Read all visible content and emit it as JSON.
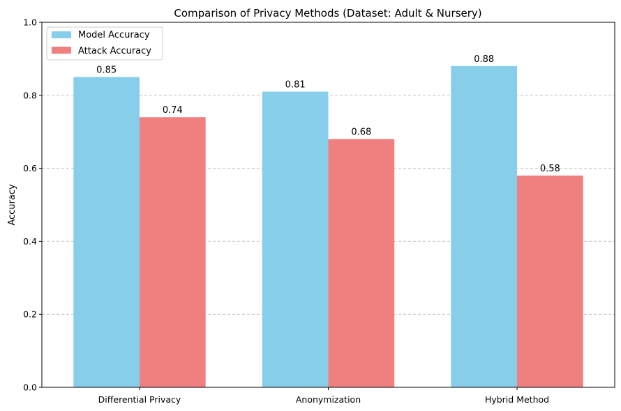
{
  "chart_data": {
    "type": "bar",
    "title": "Comparison of Privacy Methods (Dataset: Adult & Nursery)",
    "xlabel": "",
    "ylabel": "Accuracy",
    "ylim": [
      0,
      1.0
    ],
    "yticks": [
      "0.0",
      "0.2",
      "0.4",
      "0.6",
      "0.8",
      "1.0"
    ],
    "categories": [
      "Differential Privacy",
      "Anonymization",
      "Hybrid Method"
    ],
    "series": [
      {
        "name": "Model Accuracy",
        "color": "#87CEEB",
        "values": [
          0.85,
          0.81,
          0.88
        ],
        "labels": [
          "0.85",
          "0.81",
          "0.88"
        ]
      },
      {
        "name": "Attack Accuracy",
        "color": "#F08080",
        "values": [
          0.74,
          0.68,
          0.58
        ],
        "labels": [
          "0.74",
          "0.68",
          "0.58"
        ]
      }
    ],
    "grid": "y-dashed",
    "legend": "top-left"
  }
}
